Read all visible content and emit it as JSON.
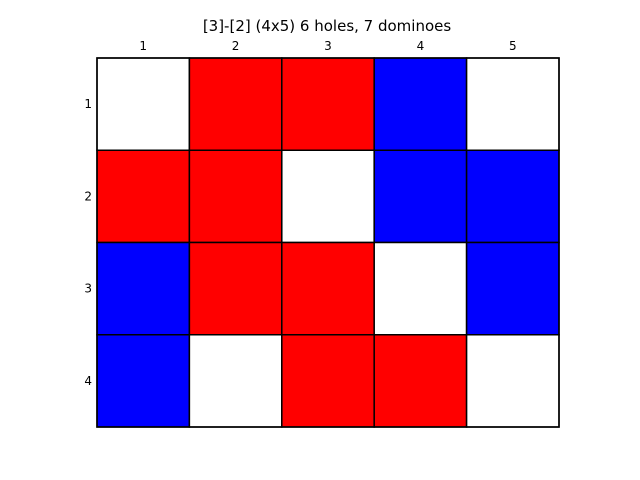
{
  "title": "[3]-[2]  (4x5) 6 holes, 7 dominoes",
  "chart_data": {
    "type": "heatmap",
    "title": "[3]-[2]  (4x5) 6 holes, 7 dominoes",
    "columns": [
      "1",
      "2",
      "3",
      "4",
      "5"
    ],
    "rows": [
      "1",
      "2",
      "3",
      "4"
    ],
    "colors": {
      "R": "#ff0000",
      "B": "#0000ff",
      "W": "#ffffff"
    },
    "grid": [
      [
        "W",
        "R",
        "R",
        "B",
        "W"
      ],
      [
        "R",
        "R",
        "W",
        "B",
        "B"
      ],
      [
        "B",
        "R",
        "R",
        "W",
        "B"
      ],
      [
        "B",
        "W",
        "R",
        "R",
        "W"
      ]
    ]
  }
}
